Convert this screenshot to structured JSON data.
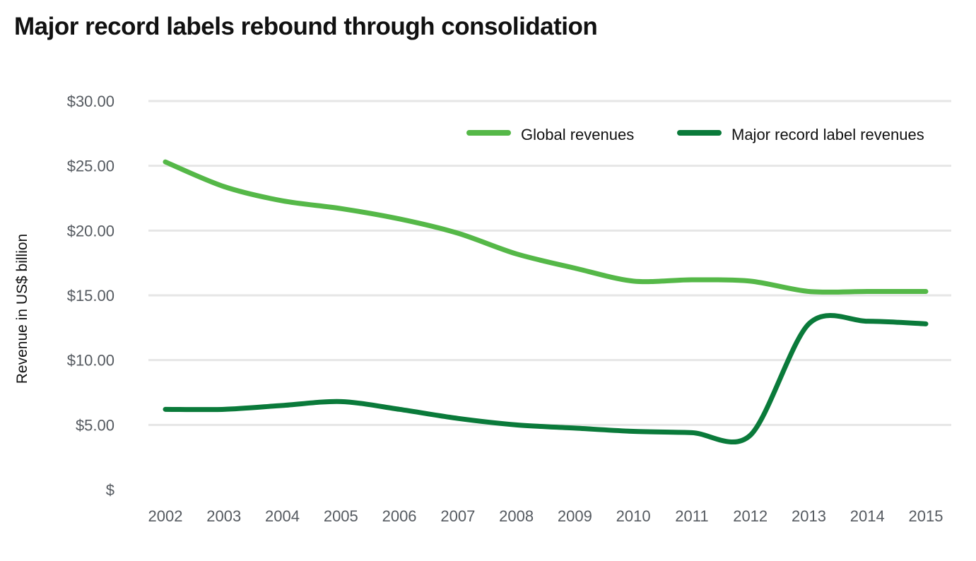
{
  "chart_data": {
    "type": "line",
    "title": "Major record labels rebound through consolidation",
    "xlabel": "",
    "ylabel": "Revenue in US$ billion",
    "ylim": [
      0,
      30
    ],
    "yticks": [
      0,
      5,
      10,
      15,
      20,
      25,
      30
    ],
    "ytick_labels": [
      "$",
      "$5.00",
      "$10.00",
      "$15.00",
      "$20.00",
      "$25.00",
      "$30.00"
    ],
    "grid": true,
    "legend_position": "top-right",
    "x": [
      "2002",
      "2003",
      "2004",
      "2005",
      "2006",
      "2007",
      "2008",
      "2009",
      "2010",
      "2011",
      "2012",
      "2013",
      "2014",
      "2015"
    ],
    "series": [
      {
        "name": "Global revenues",
        "color": "#55b848",
        "values": [
          25.3,
          23.4,
          22.3,
          21.7,
          20.9,
          19.8,
          18.2,
          17.1,
          16.1,
          16.2,
          16.1,
          15.3,
          15.3,
          15.3
        ]
      },
      {
        "name": "Major record label revenues",
        "color": "#0a7a3a",
        "values": [
          6.2,
          6.2,
          6.5,
          6.8,
          6.2,
          5.5,
          5.0,
          4.75,
          4.5,
          4.4,
          4.2,
          12.8,
          13.0,
          12.8
        ]
      }
    ]
  }
}
